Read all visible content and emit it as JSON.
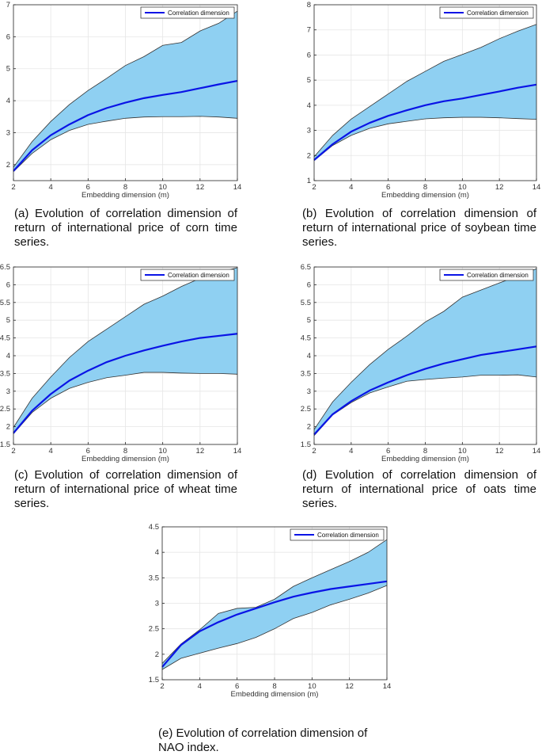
{
  "figure": {
    "colors": {
      "band": "#8fd0f2",
      "band_edge": "#333333",
      "line": "#0a14e6",
      "grid": "#e6e6e6"
    },
    "xlabel": "Embedding dimension (m)",
    "legend": "Correlation dimension"
  },
  "chart_data": [
    {
      "id": "a",
      "type": "area",
      "caption": "(a) Evolution of correlation dimension of return of international price of corn time series.",
      "xlabel": "Embedding dimension (m)",
      "xlim": [
        2,
        14
      ],
      "ylim": [
        1.5,
        7
      ],
      "xticks": [
        2,
        4,
        6,
        8,
        10,
        12,
        14
      ],
      "yticks": [
        2,
        3,
        4,
        5,
        6,
        7
      ],
      "legend_position": "top-right",
      "grid": true,
      "x": [
        2,
        3,
        4,
        5,
        6,
        7,
        8,
        9,
        10,
        11,
        12,
        13,
        14
      ],
      "series": [
        {
          "name": "Correlation dimension",
          "values": [
            1.8,
            2.45,
            2.92,
            3.26,
            3.55,
            3.77,
            3.94,
            4.08,
            4.18,
            4.27,
            4.39,
            4.51,
            4.62
          ]
        },
        {
          "values": [
            1.92,
            2.72,
            3.35,
            3.88,
            4.32,
            4.7,
            5.1,
            5.38,
            5.73,
            5.82,
            6.18,
            6.42,
            6.8
          ]
        },
        {
          "values": [
            1.78,
            2.35,
            2.78,
            3.07,
            3.26,
            3.36,
            3.45,
            3.49,
            3.5,
            3.5,
            3.51,
            3.49,
            3.45
          ]
        }
      ]
    },
    {
      "id": "b",
      "type": "area",
      "caption": "(b) Evolution of correlation dimension of return of international price of soybean time series.",
      "xlabel": "Embedding dimension (m)",
      "xlim": [
        2,
        14
      ],
      "ylim": [
        1,
        8
      ],
      "xticks": [
        2,
        4,
        6,
        8,
        10,
        12,
        14
      ],
      "yticks": [
        1,
        2,
        3,
        4,
        5,
        6,
        7,
        8
      ],
      "legend_position": "top-right",
      "grid": true,
      "x": [
        2,
        3,
        4,
        5,
        6,
        7,
        8,
        9,
        10,
        11,
        12,
        13,
        14
      ],
      "series": [
        {
          "name": "Correlation dimension",
          "values": [
            1.82,
            2.45,
            2.95,
            3.3,
            3.58,
            3.8,
            4.0,
            4.16,
            4.27,
            4.41,
            4.55,
            4.7,
            4.82
          ]
        },
        {
          "values": [
            1.95,
            2.8,
            3.45,
            3.95,
            4.45,
            4.95,
            5.35,
            5.75,
            6.02,
            6.3,
            6.65,
            6.95,
            7.22
          ]
        },
        {
          "values": [
            1.8,
            2.4,
            2.8,
            3.08,
            3.26,
            3.36,
            3.46,
            3.5,
            3.52,
            3.52,
            3.5,
            3.47,
            3.44
          ]
        }
      ]
    },
    {
      "id": "c",
      "type": "area",
      "caption": "(c) Evolution of correlation dimension of return of international price of wheat time series.",
      "xlabel": "Embedding dimension (m)",
      "xlim": [
        2,
        14
      ],
      "ylim": [
        1.5,
        6.5
      ],
      "xticks": [
        2,
        4,
        6,
        8,
        10,
        12,
        14
      ],
      "yticks": [
        1.5,
        2,
        2.5,
        3,
        3.5,
        4,
        4.5,
        5,
        5.5,
        6,
        6.5
      ],
      "legend_position": "top-right",
      "grid": true,
      "x": [
        2,
        3,
        4,
        5,
        6,
        7,
        8,
        9,
        10,
        11,
        12,
        13,
        14
      ],
      "series": [
        {
          "name": "Correlation dimension",
          "values": [
            1.82,
            2.45,
            2.92,
            3.3,
            3.58,
            3.82,
            4.0,
            4.15,
            4.28,
            4.4,
            4.5,
            4.56,
            4.62
          ]
        },
        {
          "values": [
            1.98,
            2.8,
            3.4,
            3.95,
            4.4,
            4.75,
            5.1,
            5.45,
            5.68,
            5.95,
            6.18,
            6.35,
            6.48
          ]
        },
        {
          "values": [
            1.8,
            2.4,
            2.8,
            3.08,
            3.25,
            3.38,
            3.45,
            3.53,
            3.53,
            3.51,
            3.5,
            3.5,
            3.48
          ]
        }
      ]
    },
    {
      "id": "d",
      "type": "area",
      "caption": "(d) Evolution of correlation dimension of return of international price of oats time series.",
      "xlabel": "Embedding dimension (m)",
      "xlim": [
        2,
        14
      ],
      "ylim": [
        1.5,
        6.5
      ],
      "xticks": [
        2,
        4,
        6,
        8,
        10,
        12,
        14
      ],
      "yticks": [
        1.5,
        2,
        2.5,
        3,
        3.5,
        4,
        4.5,
        5,
        5.5,
        6,
        6.5
      ],
      "legend_position": "top-right",
      "grid": true,
      "x": [
        2,
        3,
        4,
        5,
        6,
        7,
        8,
        9,
        10,
        11,
        12,
        13,
        14
      ],
      "series": [
        {
          "name": "Correlation dimension",
          "values": [
            1.78,
            2.35,
            2.72,
            3.02,
            3.25,
            3.45,
            3.63,
            3.78,
            3.9,
            4.02,
            4.1,
            4.18,
            4.26
          ]
        },
        {
          "values": [
            1.92,
            2.7,
            3.25,
            3.75,
            4.18,
            4.55,
            4.95,
            5.25,
            5.65,
            5.85,
            6.05,
            6.25,
            6.45
          ]
        },
        {
          "values": [
            1.75,
            2.33,
            2.68,
            2.95,
            3.12,
            3.28,
            3.33,
            3.37,
            3.4,
            3.45,
            3.45,
            3.46,
            3.4
          ]
        }
      ]
    },
    {
      "id": "e",
      "type": "area",
      "caption": "(e) Evolution of correlation dimension of NAO index.",
      "xlabel": "Embedding dimension (m)",
      "xlim": [
        2,
        14
      ],
      "ylim": [
        1.5,
        4.5
      ],
      "xticks": [
        2,
        4,
        6,
        8,
        10,
        12,
        14
      ],
      "yticks": [
        1.5,
        2,
        2.5,
        3,
        3.5,
        4,
        4.5
      ],
      "legend_position": "top-right",
      "grid": true,
      "x": [
        2,
        3,
        4,
        5,
        6,
        7,
        8,
        9,
        10,
        11,
        12,
        13,
        14
      ],
      "series": [
        {
          "name": "Correlation dimension",
          "values": [
            1.75,
            2.18,
            2.45,
            2.63,
            2.78,
            2.9,
            3.02,
            3.13,
            3.21,
            3.28,
            3.33,
            3.38,
            3.43
          ]
        },
        {
          "values": [
            1.82,
            2.2,
            2.48,
            2.8,
            2.9,
            2.92,
            3.08,
            3.33,
            3.5,
            3.66,
            3.82,
            4.0,
            4.25
          ]
        },
        {
          "values": [
            1.7,
            1.92,
            2.02,
            2.12,
            2.21,
            2.33,
            2.5,
            2.7,
            2.82,
            2.97,
            3.08,
            3.2,
            3.35
          ]
        }
      ]
    }
  ]
}
